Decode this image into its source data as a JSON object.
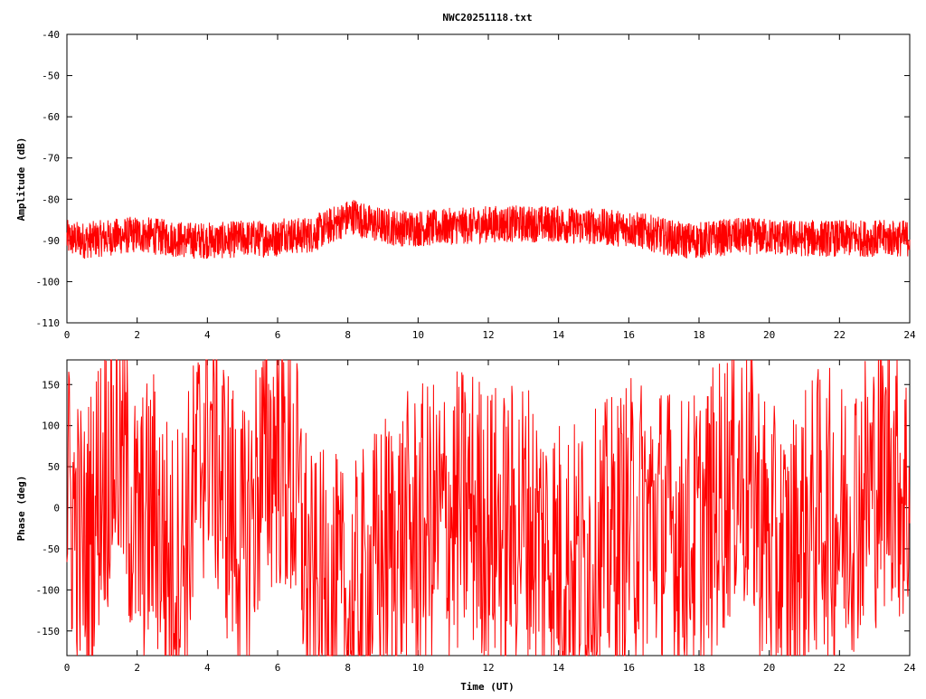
{
  "chart_data": [
    {
      "type": "line",
      "title": "NWC20251118.txt",
      "xlabel": "",
      "ylabel": "Amplitude (dB)",
      "xlim": [
        0,
        24
      ],
      "ylim": [
        -110,
        -40
      ],
      "x_ticks": [
        "0",
        "2",
        "4",
        "6",
        "8",
        "10",
        "12",
        "14",
        "16",
        "18",
        "20",
        "22",
        "24"
      ],
      "y_ticks": [
        "-40",
        "-50",
        "-60",
        "-70",
        "-80",
        "-90",
        "-100",
        "-110"
      ],
      "grid": false,
      "color": "#ff0000",
      "series": [
        {
          "x": [
            0,
            0.5,
            1,
            1.5,
            2,
            2.5,
            3,
            3.5,
            4,
            4.5,
            5,
            5.5,
            6,
            6.2,
            6.5,
            7,
            7.5,
            8,
            8.2,
            8.5,
            9,
            9.5,
            10,
            10.5,
            11,
            11.5,
            12,
            12.5,
            13,
            13.5,
            14,
            14.5,
            15,
            15.5,
            16,
            16.5,
            17,
            17.5,
            18,
            18.5,
            19,
            19.5,
            20,
            20.5,
            21,
            21.5,
            22,
            22.5,
            23,
            23.5,
            24
          ],
          "y": [
            -89.5,
            -90,
            -89.5,
            -89,
            -88.5,
            -89,
            -89.5,
            -90,
            -90,
            -90,
            -89.5,
            -89.5,
            -89.5,
            -88,
            -89,
            -88.5,
            -86.5,
            -84.5,
            -84,
            -85.5,
            -86.5,
            -87,
            -87,
            -87,
            -86.5,
            -86.5,
            -86,
            -86,
            -86,
            -86,
            -86,
            -86.5,
            -86.5,
            -87,
            -87,
            -88,
            -89,
            -90,
            -90,
            -89.5,
            -89,
            -89,
            -89,
            -89.5,
            -89.5,
            -89.5,
            -89.5,
            -89.5,
            -89.5,
            -89.5,
            -89.5
          ],
          "noise": 4.5
        }
      ]
    },
    {
      "type": "line",
      "title": "",
      "xlabel": "Time (UT)",
      "ylabel": "Phase (deg)",
      "xlim": [
        0,
        24
      ],
      "ylim": [
        -180,
        180
      ],
      "x_ticks": [
        "0",
        "2",
        "4",
        "6",
        "8",
        "10",
        "12",
        "14",
        "16",
        "18",
        "20",
        "22",
        "24"
      ],
      "y_ticks": [
        "150",
        "100",
        "50",
        "0",
        "-50",
        "-100",
        "-150"
      ],
      "grid": false,
      "color": "#ff0000",
      "series": [
        {
          "x": [
            0,
            0.5,
            1,
            1.5,
            2,
            2.5,
            3,
            3.5,
            4,
            4.5,
            5,
            5.5,
            6,
            6.5,
            7,
            7.5,
            8,
            8.5,
            9,
            9.5,
            10,
            10.5,
            11,
            11.5,
            12,
            12.5,
            13,
            13.5,
            14,
            14.5,
            15,
            15.5,
            16,
            16.5,
            17,
            17.5,
            18,
            18.5,
            19,
            19.5,
            20,
            20.5,
            21,
            21.5,
            22,
            22.5,
            23,
            23.5,
            24
          ],
          "y": [
            20,
            -60,
            40,
            80,
            -40,
            0,
            -80,
            -20,
            110,
            20,
            -60,
            40,
            80,
            20,
            -120,
            -100,
            -140,
            -100,
            -60,
            -40,
            -30,
            -20,
            -10,
            0,
            -20,
            -30,
            -10,
            -40,
            -60,
            -70,
            -60,
            -40,
            -20,
            -10,
            -20,
            -40,
            -30,
            0,
            50,
            30,
            -50,
            -70,
            -30,
            0,
            -20,
            10,
            30,
            60,
            0
          ],
          "noise": 180
        }
      ]
    }
  ]
}
